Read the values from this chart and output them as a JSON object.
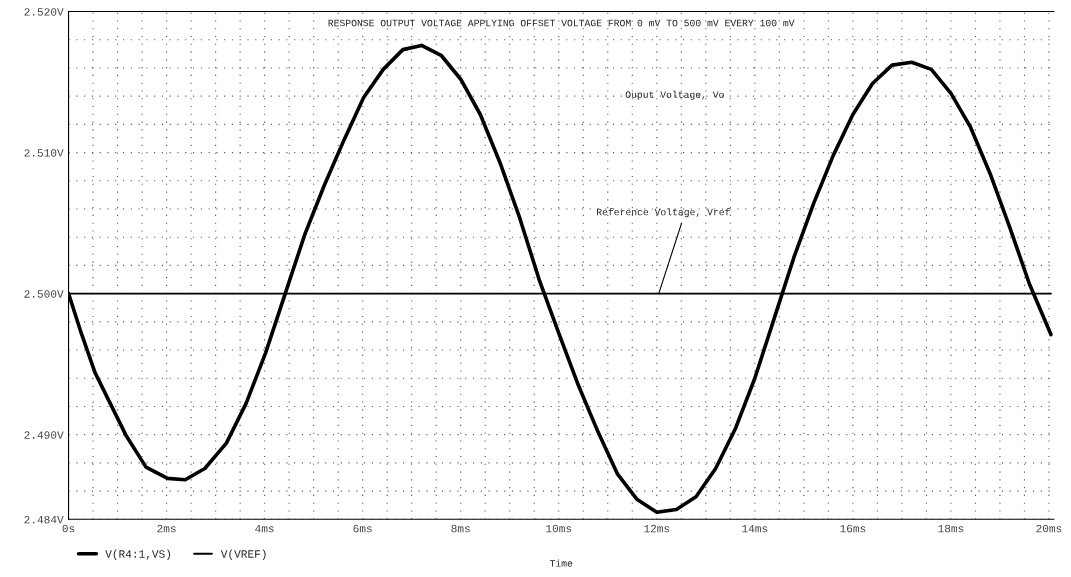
{
  "chart_data": {
    "type": "line",
    "title": "RESPONSE OUTPUT VOLTAGE APPLYING OFFSET VOLTAGE FROM 0 mV TO 500 mV EVERY 100 mV",
    "xlabel": "Time",
    "series": [
      {
        "name": "V(R4:1,VS)",
        "color": "#000000",
        "x": [
          0,
          0.24,
          0.54,
          1.18,
          1.58,
          2.02,
          2.38,
          2.78,
          3.22,
          3.62,
          4.02,
          4.42,
          4.82,
          5.22,
          5.62,
          6.02,
          6.42,
          6.82,
          7.2,
          7.6,
          8.0,
          8.4,
          8.8,
          9.2,
          9.6,
          10.0,
          10.4,
          10.8,
          11.2,
          11.6,
          12.0,
          12.4,
          12.8,
          13.2,
          13.6,
          14.0,
          14.4,
          14.8,
          15.2,
          15.6,
          16.0,
          16.4,
          16.8,
          17.2,
          17.6,
          18.0,
          18.4,
          18.8,
          19.2,
          19.6,
          20.04
        ],
        "values": [
          2.5,
          2.4974,
          2.4944,
          2.4899,
          2.4877,
          2.4869,
          2.4868,
          2.4876,
          2.4894,
          2.4922,
          2.4958,
          2.5,
          2.5042,
          2.5077,
          2.5109,
          2.5139,
          2.5159,
          2.5173,
          2.5176,
          2.5169,
          2.5152,
          2.5127,
          2.5093,
          2.5054,
          2.501,
          2.4972,
          2.4935,
          2.4902,
          2.4872,
          2.4854,
          2.4845,
          2.4847,
          2.4856,
          2.4876,
          2.4904,
          2.494,
          2.4983,
          2.5026,
          2.5064,
          2.5098,
          2.5127,
          2.5149,
          2.5162,
          2.5164,
          2.5159,
          2.5142,
          2.5118,
          2.5085,
          2.5047,
          2.5007,
          2.4971
        ]
      },
      {
        "name": "V(VREF)",
        "color": "#000000",
        "x": [
          0,
          20.04
        ],
        "values": [
          2.5,
          2.5
        ]
      }
    ],
    "annotations": [
      "Ouput Voltage, Vo",
      {
        "text": "Reference Voltage, Vref",
        "x": 12.04,
        "y": 2.5
      }
    ],
    "xlim": [
      0,
      20.1
    ],
    "xticks": [
      {
        "value": 0,
        "label": "0s"
      },
      {
        "value": 0.5,
        "label": null
      },
      {
        "value": 1,
        "label": null
      },
      {
        "value": 1.5,
        "label": null
      },
      {
        "value": 2,
        "label": "2ms"
      },
      {
        "value": 2.5,
        "label": null
      },
      {
        "value": 3,
        "label": null
      },
      {
        "value": 3.5,
        "label": null
      },
      {
        "value": 4,
        "label": "4ms"
      },
      {
        "value": 4.5,
        "label": null
      },
      {
        "value": 5,
        "label": null
      },
      {
        "value": 5.5,
        "label": null
      },
      {
        "value": 6,
        "label": "6ms"
      },
      {
        "value": 6.5,
        "label": null
      },
      {
        "value": 7,
        "label": null
      },
      {
        "value": 7.5,
        "label": null
      },
      {
        "value": 8,
        "label": "8ms"
      },
      {
        "value": 8.5,
        "label": null
      },
      {
        "value": 9,
        "label": null
      },
      {
        "value": 9.5,
        "label": null
      },
      {
        "value": 10,
        "label": "10ms"
      },
      {
        "value": 10.5,
        "label": null
      },
      {
        "value": 11,
        "label": null
      },
      {
        "value": 11.5,
        "label": null
      },
      {
        "value": 12,
        "label": "12ms"
      },
      {
        "value": 12.5,
        "label": null
      },
      {
        "value": 13,
        "label": null
      },
      {
        "value": 13.5,
        "label": null
      },
      {
        "value": 14,
        "label": "14ms"
      },
      {
        "value": 14.5,
        "label": null
      },
      {
        "value": 15,
        "label": null
      },
      {
        "value": 15.5,
        "label": null
      },
      {
        "value": 16,
        "label": "16ms"
      },
      {
        "value": 16.5,
        "label": null
      },
      {
        "value": 17,
        "label": null
      },
      {
        "value": 17.5,
        "label": null
      },
      {
        "value": 18,
        "label": "18ms"
      },
      {
        "value": 18.5,
        "label": null
      },
      {
        "value": 19,
        "label": null
      },
      {
        "value": 19.5,
        "label": null
      },
      {
        "value": 20,
        "label": "20ms"
      }
    ],
    "ylim": [
      2.484,
      2.52
    ],
    "yticks": [
      {
        "value": 2.484,
        "label": "2.484V"
      },
      {
        "value": 2.486,
        "label": null
      },
      {
        "value": 2.488,
        "label": null
      },
      {
        "value": 2.49,
        "label": "2.490V"
      },
      {
        "value": 2.492,
        "label": null
      },
      {
        "value": 2.494,
        "label": null
      },
      {
        "value": 2.496,
        "label": null
      },
      {
        "value": 2.498,
        "label": null
      },
      {
        "value": 2.5,
        "label": "2.500V"
      },
      {
        "value": 2.502,
        "label": null
      },
      {
        "value": 2.504,
        "label": null
      },
      {
        "value": 2.506,
        "label": null
      },
      {
        "value": 2.508,
        "label": null
      },
      {
        "value": 2.51,
        "label": "2.510V"
      },
      {
        "value": 2.512,
        "label": null
      },
      {
        "value": 2.514,
        "label": null
      },
      {
        "value": 2.516,
        "label": null
      },
      {
        "value": 2.518,
        "label": null
      },
      {
        "value": 2.52,
        "label": "2.520V"
      }
    ],
    "grid": true,
    "legend": "bottom left",
    "marker": "none",
    "line_style": "solid"
  }
}
